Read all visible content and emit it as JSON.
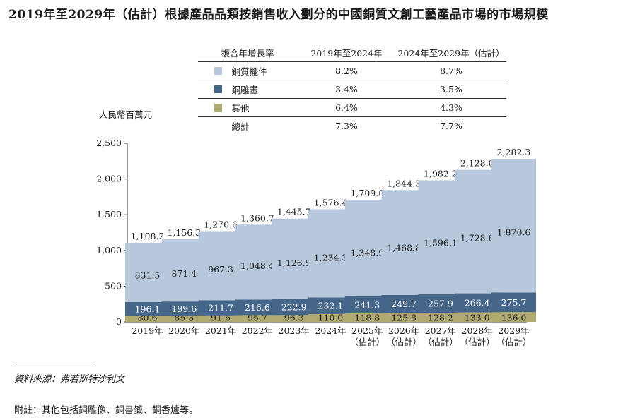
{
  "title": "2019年至2029年（估計）根據產品品類按銷售收入劃分的中國銅質文創工藝產品市場的市場規模",
  "unit_label": "人民幣百萬元",
  "cagr_table": {
    "header": [
      "複合年增長率",
      "2019年至2024年",
      "2024年至2029年（估計）"
    ],
    "rows": [
      {
        "name": "銅質擺件",
        "color": "#b7c8dc",
        "cagr_1": "8.2%",
        "cagr_2": "8.7%"
      },
      {
        "name": "銅雕畫",
        "color": "#456589",
        "cagr_1": "3.4%",
        "cagr_2": "3.5%"
      },
      {
        "name": "其他",
        "color": "#aeaa70",
        "cagr_1": "6.4%",
        "cagr_2": "4.3%"
      }
    ],
    "total": {
      "name": "總計",
      "cagr_1": "7.3%",
      "cagr_2": "7.7%"
    }
  },
  "chart_data": {
    "type": "bar",
    "stacked": true,
    "categories": [
      "2019年",
      "2020年",
      "2021年",
      "2022年",
      "2023年",
      "2024年",
      "2025年（估計）",
      "2026年（估計）",
      "2027年（估計）",
      "2028年（估計）",
      "2029年（估計）"
    ],
    "series": [
      {
        "name": "其他",
        "color": "#aeaa70",
        "values": [
          80.6,
          85.3,
          91.6,
          95.7,
          96.3,
          110.0,
          118.8,
          125.8,
          128.2,
          133.0,
          136.0
        ],
        "labels": [
          "80.6",
          "85.3",
          "91.6",
          "95.7",
          "96.3",
          "110.0",
          "118.8",
          "125.8",
          "128.2",
          "133.0",
          "136.0"
        ]
      },
      {
        "name": "銅雕畫",
        "color": "#456589",
        "values": [
          196.1,
          199.6,
          211.7,
          216.6,
          222.9,
          232.1,
          241.3,
          249.7,
          257.9,
          266.4,
          275.7
        ],
        "labels": [
          "196.1",
          "199.6",
          "211.7",
          "216.6",
          "222.9",
          "232.1",
          "241.3",
          "249.7",
          "257.9",
          "266.4",
          "275.7"
        ]
      },
      {
        "name": "銅質擺件",
        "color": "#b7c8dc",
        "values": [
          831.5,
          871.4,
          967.3,
          1048.4,
          1126.5,
          1234.3,
          1348.9,
          1468.8,
          1596.1,
          1728.6,
          1870.6
        ],
        "labels": [
          "831.5",
          "871.4",
          "967.3",
          "1,048.4",
          "1,126.5",
          "1,234.3",
          "1,348.9",
          "1,468.8",
          "1,596.1",
          "1,728.6",
          "1,870.6"
        ]
      }
    ],
    "totals": [
      1108.2,
      1156.3,
      1270.6,
      1360.7,
      1445.7,
      1576.4,
      1709.0,
      1844.3,
      1982.2,
      2128.0,
      2282.3
    ],
    "total_labels": [
      "1,108.2",
      "1,156.3",
      "1,270.6",
      "1,360.7",
      "1,445.7",
      "1,576.4",
      "1,709.0",
      "1,844.3",
      "1,982.2",
      "2,128.0",
      "2,282.3"
    ],
    "ylim": [
      0,
      2500
    ],
    "yticks": [
      0,
      500,
      1000,
      1500,
      2000,
      2500
    ],
    "ytick_labels": [
      "0",
      "500",
      "1,000",
      "1,500",
      "2,000",
      "2,500"
    ]
  },
  "source": "資料來源：弗若斯特沙利文",
  "note": "附註：其他包括銅雕像、銅書籤、銅香爐等。"
}
